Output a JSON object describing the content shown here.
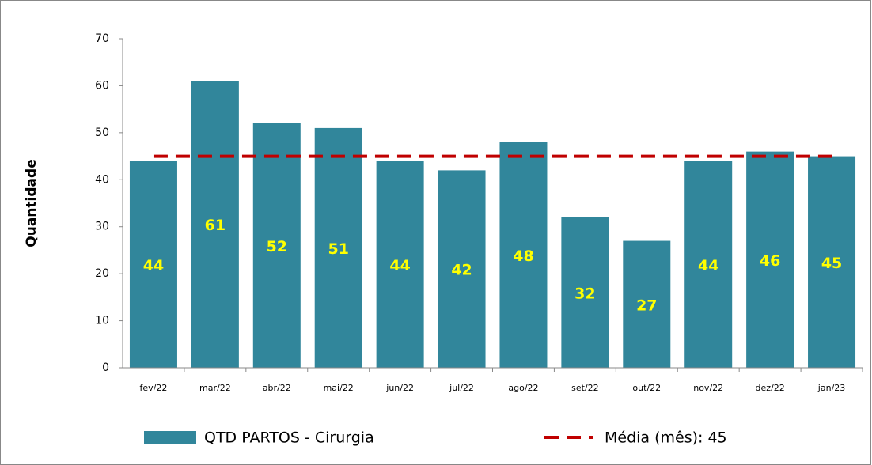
{
  "chart_data": {
    "type": "bar",
    "y_axis_label": "Quantidade",
    "categories": [
      "fev/22",
      "mar/22",
      "abr/22",
      "mai/22",
      "jun/22",
      "jul/22",
      "ago/22",
      "set/22",
      "out/22",
      "nov/22",
      "dez/22",
      "jan/23"
    ],
    "series": [
      {
        "name": "QTD PARTOS - Cirurgia",
        "type": "bar",
        "color": "#31869b",
        "values": [
          44,
          61,
          52,
          51,
          44,
          42,
          48,
          32,
          27,
          44,
          46,
          45
        ]
      },
      {
        "name": "Média (mês): 45",
        "type": "line",
        "dashed": true,
        "color": "#c00000",
        "values": [
          45,
          45,
          45,
          45,
          45,
          45,
          45,
          45,
          45,
          45,
          45,
          45
        ]
      }
    ],
    "ylim": [
      0,
      70
    ],
    "yticks": [
      0,
      10,
      20,
      30,
      40,
      50,
      60,
      70
    ],
    "grid": false
  }
}
